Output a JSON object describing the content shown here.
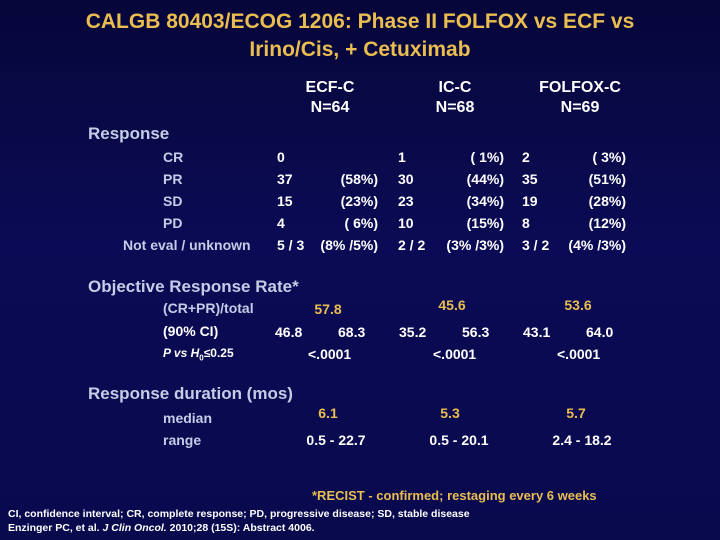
{
  "title": {
    "line1": "CALGB 80403/ECOG 1206: Phase II FOLFOX vs ECF vs",
    "line2": "Irino/Cis, + Cetuximab"
  },
  "arms": [
    {
      "name": "ECF-C",
      "n": "N=64"
    },
    {
      "name": "IC-C",
      "n": "N=68"
    },
    {
      "name": "FOLFOX-C",
      "n": "N=69"
    }
  ],
  "response": {
    "heading": "Response",
    "rows": [
      {
        "label": "CR",
        "values": [
          {
            "n": "0",
            "pct": ""
          },
          {
            "n": "1",
            "pct": "(  1%)"
          },
          {
            "n": "2",
            "pct": "(  3%)"
          }
        ]
      },
      {
        "label": "PR",
        "values": [
          {
            "n": "37",
            "pct": "(58%)"
          },
          {
            "n": "30",
            "pct": "(44%)"
          },
          {
            "n": "35",
            "pct": "(51%)"
          }
        ]
      },
      {
        "label": "SD",
        "values": [
          {
            "n": "15",
            "pct": "(23%)"
          },
          {
            "n": "23",
            "pct": "(34%)"
          },
          {
            "n": "19",
            "pct": "(28%)"
          }
        ]
      },
      {
        "label": "PD",
        "values": [
          {
            "n": "4",
            "pct": "(  6%)"
          },
          {
            "n": "10",
            "pct": "(15%)"
          },
          {
            "n": "8",
            "pct": "(12%)"
          }
        ]
      },
      {
        "label": "Not eval / unknown",
        "values": [
          {
            "n": "5 / 3",
            "pct": "(8% /5%)"
          },
          {
            "n": "2 / 2",
            "pct": "(3% /3%)"
          },
          {
            "n": "3 / 2",
            "pct": "(4% /3%)"
          }
        ]
      }
    ]
  },
  "orr": {
    "heading": "Objective Response Rate*",
    "total_label": "(CR+PR)/total",
    "ci_label": "(90% CI)",
    "p_label": "P vs H",
    "p_sub": "0",
    "p_suffix": "≤0.25",
    "values": [
      {
        "rate": "57.8",
        "ci_low": "46.8",
        "ci_high": "68.3",
        "p": "<.0001"
      },
      {
        "rate": "45.6",
        "ci_low": "35.2",
        "ci_high": "56.3",
        "p": "<.0001"
      },
      {
        "rate": "53.6",
        "ci_low": "43.1",
        "ci_high": "64.0",
        "p": "<.0001"
      }
    ]
  },
  "duration": {
    "heading": "Response duration (mos)",
    "median_label": "median",
    "range_label": "range",
    "values": [
      {
        "median": "6.1",
        "range": "0.5 - 22.7"
      },
      {
        "median": "5.3",
        "range": "0.5 - 20.1"
      },
      {
        "median": "5.7",
        "range": "2.4 - 18.2"
      }
    ]
  },
  "footnote": "*RECIST - confirmed; restaging every 6 weeks",
  "abbreviations": "CI, confidence interval; CR, complete response; PD, progressive disease; SD, stable disease",
  "citation": {
    "authors": "Enzinger PC, et al. ",
    "journal": "J Clin Oncol.",
    "details": " 2010;28 (15S): Abstract 4006."
  },
  "colors": {
    "title": "#e9bd50",
    "background": "#0b0b55",
    "label": "#c2cde6",
    "value": "#ffffff"
  }
}
